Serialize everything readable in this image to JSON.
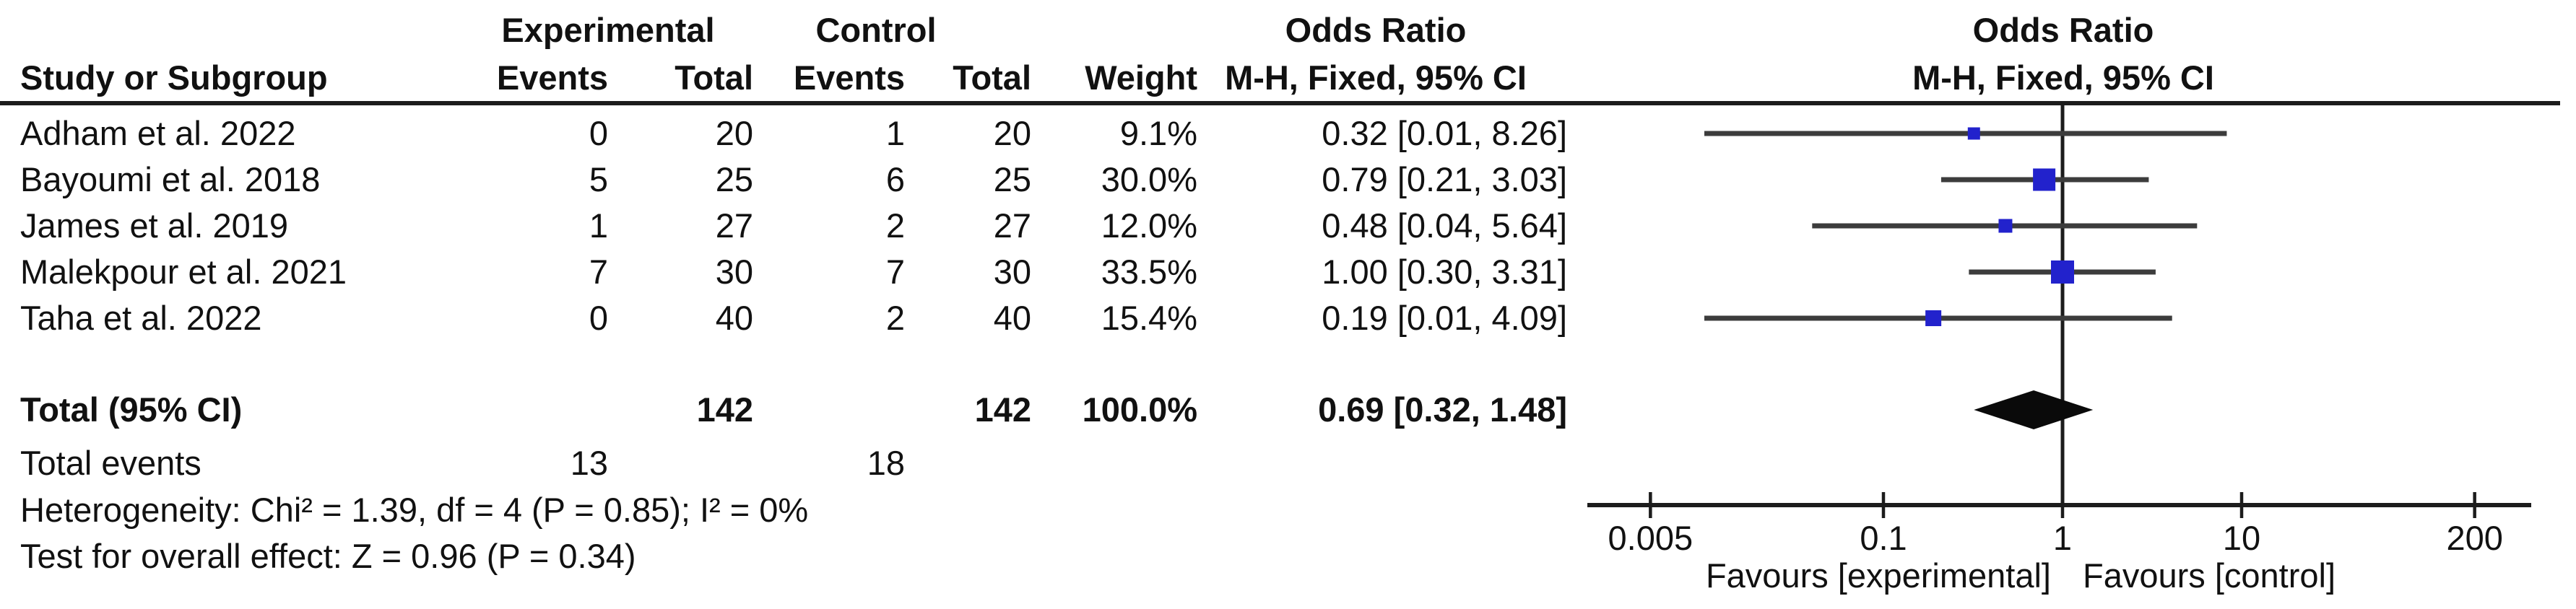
{
  "figure_headers": {
    "group_experimental": "Experimental",
    "group_control": "Control",
    "odds_ratio_left": "Odds Ratio",
    "odds_ratio_right": "Odds Ratio",
    "study_or_subgroup": "Study or Subgroup",
    "events_experimental": "Events",
    "total_experimental": "Total",
    "events_control": "Events",
    "total_control": "Total",
    "weight": "Weight",
    "mh_fixed_left": "M-H, Fixed, 95% CI",
    "mh_fixed_right": "M-H, Fixed, 95% CI"
  },
  "chart_data": {
    "type": "forest",
    "effect_measure": "Odds Ratio",
    "method_label": "M-H, Fixed, 95% CI",
    "x_scale": "log",
    "x_ticks": [
      "0.005",
      "0.1",
      "1",
      "10",
      "200"
    ],
    "x_tick_values": [
      0.005,
      0.1,
      1,
      10,
      200
    ],
    "xlim": [
      0.005,
      200
    ],
    "x_axis_labels": {
      "left": "Favours [experimental]",
      "right": "Favours [control]"
    },
    "studies": [
      {
        "name": "Adham et al. 2022",
        "exp_events": "0",
        "exp_total": "20",
        "ctrl_events": "1",
        "ctrl_total": "20",
        "weight_text": "9.1%",
        "weight_pct": 9.1,
        "or_text": "0.32 [0.01, 8.26]",
        "or": 0.32,
        "ci_low": 0.01,
        "ci_high": 8.26
      },
      {
        "name": "Bayoumi et al. 2018",
        "exp_events": "5",
        "exp_total": "25",
        "ctrl_events": "6",
        "ctrl_total": "25",
        "weight_text": "30.0%",
        "weight_pct": 30.0,
        "or_text": "0.79 [0.21, 3.03]",
        "or": 0.79,
        "ci_low": 0.21,
        "ci_high": 3.03
      },
      {
        "name": "James et al. 2019",
        "exp_events": "1",
        "exp_total": "27",
        "ctrl_events": "2",
        "ctrl_total": "27",
        "weight_text": "12.0%",
        "weight_pct": 12.0,
        "or_text": "0.48 [0.04, 5.64]",
        "or": 0.48,
        "ci_low": 0.04,
        "ci_high": 5.64
      },
      {
        "name": "Malekpour et al. 2021",
        "exp_events": "7",
        "exp_total": "30",
        "ctrl_events": "7",
        "ctrl_total": "30",
        "weight_text": "33.5%",
        "weight_pct": 33.5,
        "or_text": "1.00 [0.30, 3.31]",
        "or": 1.0,
        "ci_low": 0.3,
        "ci_high": 3.31
      },
      {
        "name": "Taha et al. 2022",
        "exp_events": "0",
        "exp_total": "40",
        "ctrl_events": "2",
        "ctrl_total": "40",
        "weight_text": "15.4%",
        "weight_pct": 15.4,
        "or_text": "0.19 [0.01, 4.09]",
        "or": 0.19,
        "ci_low": 0.01,
        "ci_high": 4.09
      }
    ],
    "total": {
      "label": "Total (95% CI)",
      "exp_total": "142",
      "ctrl_total": "142",
      "weight_text": "100.0%",
      "or_text": "0.69 [0.32, 1.48]",
      "or": 0.69,
      "ci_low": 0.32,
      "ci_high": 1.48
    },
    "total_events": {
      "label": "Total events",
      "experimental": "13",
      "control": "18"
    },
    "heterogeneity": "Heterogeneity: Chi² = 1.39, df = 4 (P = 0.85); I² = 0%",
    "overall_effect": "Test for overall effect: Z = 0.96 (P = 0.34)",
    "colors": {
      "marker": "#2222cc",
      "ci_line": "#3c3c3c",
      "axis": "#1c1c1c",
      "diamond": "#0a0a0a",
      "text": "#111111"
    }
  }
}
